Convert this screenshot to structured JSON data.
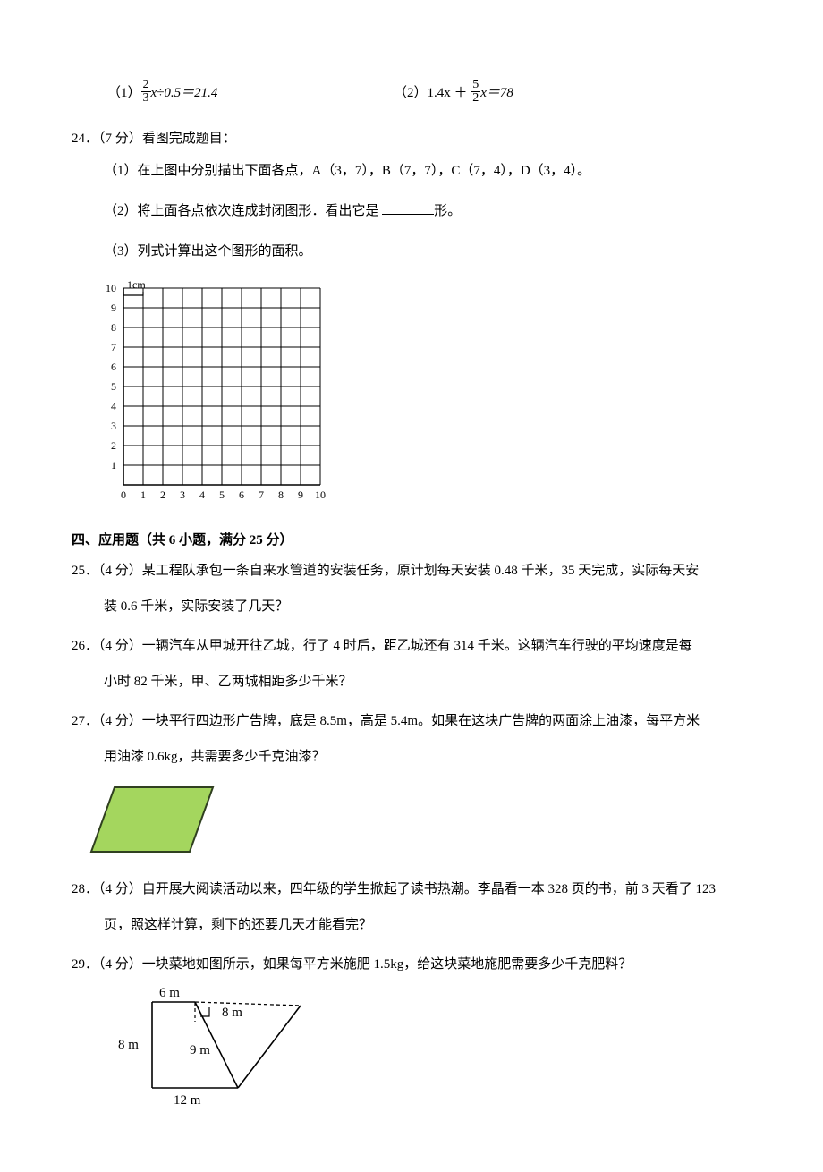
{
  "equations": {
    "eq1_pre": "（1）",
    "eq1_frac_num": "2",
    "eq1_frac_den": "3",
    "eq1_post": "x÷0.5＝21.4",
    "eq2_pre": "（2）1.4x ＋ ",
    "eq2_frac_num": "5",
    "eq2_frac_den": "2",
    "eq2_post": "x＝78"
  },
  "q24": {
    "header": "24．（7 分）看图完成题目：",
    "sub1": "（1）在上图中分别描出下面各点，A（3，7），B（7，7），C（7，4），D（3，4）。",
    "sub2_pre": "（2）将上面各点依次连成封闭图形．看出它是 ",
    "sub2_post": "形。",
    "sub3": "（3）列式计算出这个图形的面积。"
  },
  "grid": {
    "label_1cm": "1cm",
    "x_range": [
      0,
      10
    ],
    "y_range": [
      1,
      10
    ],
    "grid_color": "#000000",
    "bg": "#ffffff",
    "tick_fontsize": 12
  },
  "section4": "四、应用题（共 6 小题，满分 25 分）",
  "q25": {
    "line1": "25．（4 分）某工程队承包一条自来水管道的安装任务，原计划每天安装 0.48 千米，35 天完成，实际每天安",
    "line2": "装 0.6 千米，实际安装了几天？"
  },
  "q26": {
    "line1": "26．（4 分）一辆汽车从甲城开往乙城，行了 4 时后，距乙城还有 314 千米。这辆汽车行驶的平均速度是每",
    "line2": "小时 82 千米，甲、乙两城相距多少千米？"
  },
  "q27": {
    "line1": "27．（4 分）一块平行四边形广告牌，底是 8.5m，高是 5.4m。如果在这块广告牌的两面涂上油漆，每平方米",
    "line2": "用油漆 0.6kg，共需要多少千克油漆？"
  },
  "parallelogram": {
    "fill": "#a4d65e",
    "stroke": "#304020",
    "width": 135,
    "height": 78
  },
  "q28": {
    "line1": "28．（4 分）自开展大阅读活动以来，四年级的学生掀起了读书热潮。李晶看一本 328 页的书，前 3 天看了 123",
    "line2": "页，照这样计算，剩下的还要几天才能看完？"
  },
  "q29": {
    "text": "29．（4 分）一块菜地如图所示，如果每平方米施肥 1.5kg，给这块菜地施肥需要多少千克肥料？"
  },
  "field_diagram": {
    "labels": {
      "top": "6 m",
      "triangle_top": "8 m",
      "left": "8 m",
      "middle": "9 m",
      "bottom": "12 m"
    },
    "stroke": "#000000",
    "font_size": 15
  }
}
